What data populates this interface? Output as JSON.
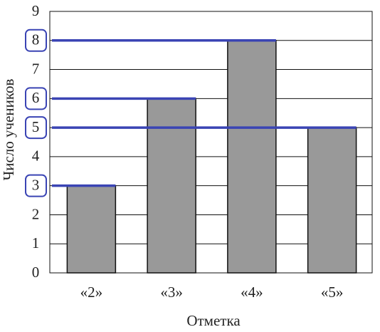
{
  "chart_data": {
    "type": "bar",
    "xlabel": "Отметка",
    "ylabel": "Число учеников",
    "categories": [
      "«2»",
      "«3»",
      "«4»",
      "«5»"
    ],
    "values": [
      3,
      6,
      8,
      5
    ],
    "color": "#999999",
    "ylim": [
      0,
      9
    ],
    "yticks": [
      0,
      1,
      2,
      3,
      4,
      5,
      6,
      7,
      8,
      9
    ],
    "grid": true,
    "highlight_color": "#3a44b4"
  }
}
